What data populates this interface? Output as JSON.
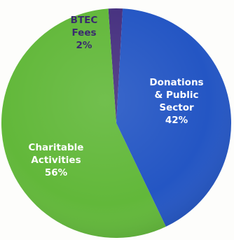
{
  "chart_data": {
    "type": "pie",
    "title": "",
    "slices": [
      {
        "label_lines": [
          "BTEC",
          "Fees",
          "2%"
        ],
        "label": "BTEC Fees",
        "value": 2,
        "color": "#46307f",
        "text_color": "#3a2a6e"
      },
      {
        "label_lines": [
          "Donations",
          "& Public",
          "Sector",
          "42%"
        ],
        "label": "Donations & Public Sector",
        "value": 42,
        "color": "#2456c4",
        "text_color": "#ffffff"
      },
      {
        "label_lines": [
          "Charitable",
          "Activities",
          "56%"
        ],
        "label": "Charitable Activities",
        "value": 56,
        "color": "#62b83a",
        "text_color": "#ffffff"
      }
    ],
    "legend": "none"
  }
}
